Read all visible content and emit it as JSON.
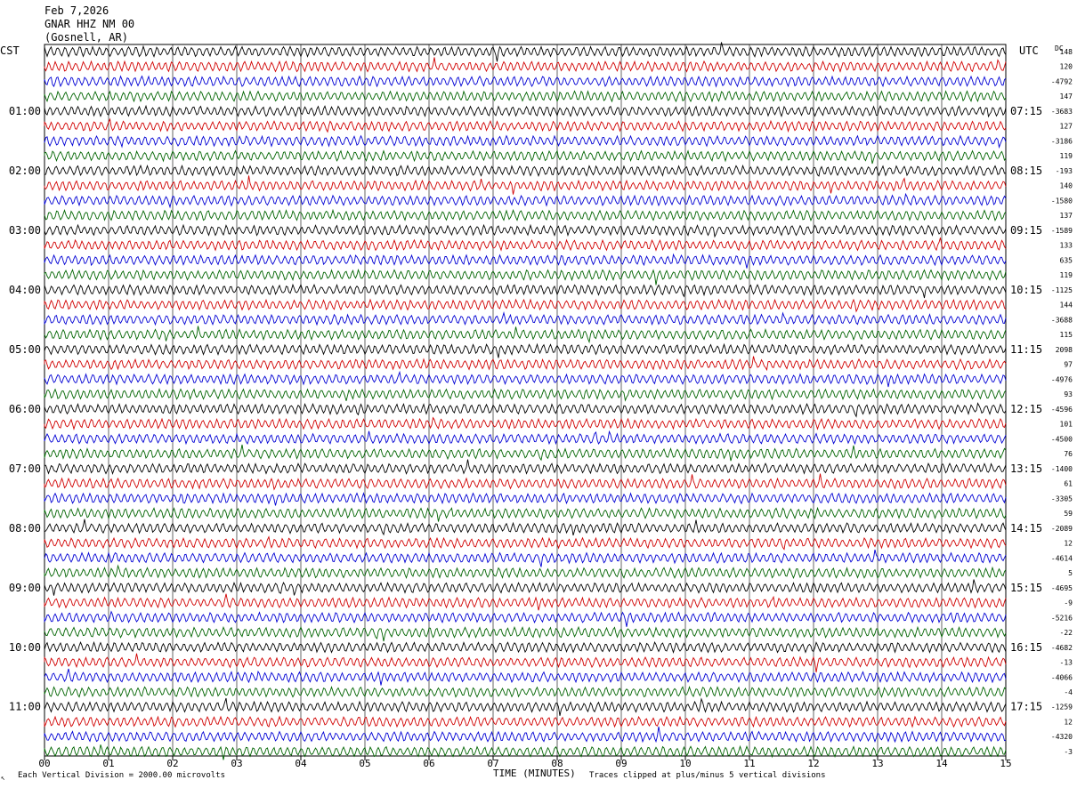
{
  "header": {
    "date": "Feb 7,2026",
    "station": "GNAR HHZ NM 00",
    "location": "(Gosnell, AR)"
  },
  "left_axis_title": "CST",
  "right_axis_title": "UTC",
  "dc_label": "DC",
  "footer": {
    "vertical_division_note": "Each Vertical Division = 2000.00 microvolts",
    "x_axis_label": "TIME (MINUTES)",
    "clip_note": "Traces clipped at plus/minus 5 vertical divisions",
    "corner_mark": "↖"
  },
  "colors": {
    "trace_cycle": [
      "#000000",
      "#d10000",
      "#0000d4",
      "#006400"
    ],
    "grid": "#000000"
  },
  "chart_data": {
    "type": "line",
    "title": "GNAR HHZ NM 00 (Gosnell, AR) Feb 7,2026",
    "xlabel": "TIME (MINUTES)",
    "x_range": [
      0,
      15
    ],
    "x_ticks": [
      "00",
      "01",
      "02",
      "03",
      "04",
      "05",
      "06",
      "07",
      "08",
      "09",
      "10",
      "11",
      "12",
      "13",
      "14",
      "15"
    ],
    "trace_minutes": 15,
    "trace_count": 48,
    "left_time_labels": [
      "01:00",
      "02:00",
      "03:00",
      "04:00",
      "05:00",
      "06:00",
      "07:00",
      "08:00",
      "09:00",
      "10:00",
      "11:00"
    ],
    "right_time_labels": [
      "07:15",
      "08:15",
      "09:15",
      "10:15",
      "11:15",
      "12:15",
      "13:15",
      "14:15",
      "15:15",
      "16:15",
      "17:15"
    ],
    "label_every_n_traces": 4,
    "first_label_trace_index": 4,
    "dc_offsets": [
      "148",
      "120",
      "-4792",
      "147",
      "-3683",
      "127",
      "-3186",
      "119",
      "-193",
      "140",
      "-1580",
      "137",
      "-1589",
      "133",
      "635",
      "119",
      "-1125",
      "144",
      "-3688",
      "115",
      "2098",
      "97",
      "-4976",
      "93",
      "-4596",
      "101",
      "-4500",
      "76",
      "-1400",
      "61",
      "-3305",
      "59",
      "-2089",
      "12",
      "-4614",
      "5",
      "-4695",
      "-9",
      "-5216",
      "-22",
      "-4682",
      "-13",
      "-4066",
      "-4",
      "-1259",
      "12",
      "-4320",
      "-3"
    ],
    "vertical_division_microvolts": 2000.0,
    "clip_divisions": 5
  }
}
